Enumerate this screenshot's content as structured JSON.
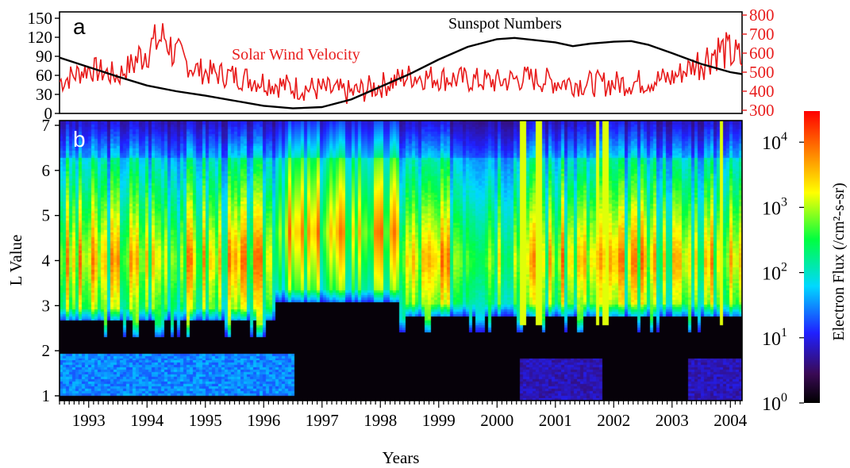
{
  "chart_data": [
    {
      "type": "line",
      "panel_label": "a",
      "x_range": [
        1992.5,
        2004.2
      ],
      "y_left_range": [
        0,
        150
      ],
      "y_left_ticks": [
        "150",
        "120",
        "90",
        "60",
        "30",
        "0"
      ],
      "y_right_range": [
        300,
        800
      ],
      "y_right_ticks": [
        "800",
        "700",
        "600",
        "500",
        "400",
        "300"
      ],
      "annotations": {
        "sunspot": "Sunspot Numbers",
        "solar_wind": "Solar Wind Velocity"
      },
      "series": [
        {
          "name": "Sunspot Numbers",
          "axis": "left",
          "color": "#000000",
          "x": [
            1992.5,
            1993.0,
            1993.5,
            1994.0,
            1994.5,
            1995.0,
            1995.5,
            1996.0,
            1996.5,
            1997.0,
            1997.5,
            1998.0,
            1998.5,
            1999.0,
            1999.5,
            2000.0,
            2000.3,
            2000.6,
            2001.0,
            2001.3,
            2001.6,
            2002.0,
            2002.3,
            2002.6,
            2003.0,
            2003.5,
            2004.0,
            2004.2
          ],
          "y": [
            88,
            73,
            58,
            44,
            35,
            28,
            20,
            12,
            8,
            10,
            22,
            42,
            62,
            85,
            105,
            117,
            119,
            116,
            112,
            106,
            110,
            113,
            114,
            108,
            95,
            78,
            65,
            62
          ]
        },
        {
          "name": "Solar Wind Velocity",
          "axis": "right",
          "color": "#e81c1c",
          "x": [
            1992.5,
            1993.0,
            1993.5,
            1993.8,
            1994.0,
            1994.3,
            1994.5,
            1994.8,
            1995.0,
            1995.5,
            1996.0,
            1996.5,
            1997.0,
            1997.5,
            1998.0,
            1998.5,
            1999.0,
            1999.5,
            2000.0,
            2000.5,
            2001.0,
            2001.5,
            2002.0,
            2002.5,
            2003.0,
            2003.5,
            2003.8,
            2004.0,
            2004.2
          ],
          "y": [
            450,
            520,
            480,
            560,
            620,
            690,
            580,
            520,
            500,
            480,
            450,
            420,
            410,
            390,
            430,
            480,
            470,
            460,
            450,
            470,
            450,
            440,
            440,
            450,
            470,
            560,
            620,
            600,
            560
          ]
        }
      ]
    },
    {
      "type": "heatmap",
      "panel_label": "b",
      "xlabel": "Years",
      "ylabel": "L Value",
      "x_range": [
        1992.5,
        2004.2
      ],
      "x_ticks": [
        "1993",
        "1994",
        "1995",
        "1996",
        "1997",
        "1998",
        "1999",
        "2000",
        "2001",
        "2002",
        "2003",
        "2004"
      ],
      "y_range": [
        1,
        7
      ],
      "y_ticks": [
        "7",
        "6",
        "5",
        "4",
        "3",
        "2",
        "1"
      ],
      "colorbar": {
        "label": "Electron Flux (/cm²-s-sr)",
        "scale": "log",
        "range": [
          1,
          30000
        ],
        "ticks": [
          {
            "base": "10",
            "exp": "4",
            "value": 10000
          },
          {
            "base": "10",
            "exp": "3",
            "value": 1000
          },
          {
            "base": "10",
            "exp": "2",
            "value": 100
          },
          {
            "base": "10",
            "exp": "1",
            "value": 10
          },
          {
            "base": "10",
            "exp": "0",
            "value": 1
          }
        ],
        "colors": [
          "#000000",
          "#3a0a55",
          "#2020ff",
          "#00d8ff",
          "#00ff40",
          "#ffff00",
          "#ff8000",
          "#ff0000"
        ]
      },
      "peak_L_approx": 4.0
    }
  ]
}
